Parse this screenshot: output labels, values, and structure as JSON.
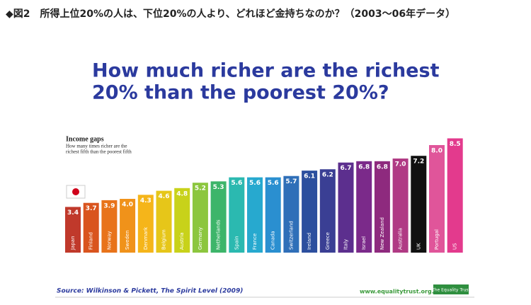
{
  "header": "◆図2　所得上位20%の人は、下位20%の人より、どれほど金持ちなのか？（2003～06年データ）",
  "chart_data": {
    "type": "bar",
    "title_lines": [
      "How much richer are the richest",
      "20% than the poorest 20%?"
    ],
    "annotations": [
      "Income gaps",
      "How many times richer are the",
      "richest fifth than the poorest fifth"
    ],
    "categories": [
      "Japan",
      "Finland",
      "Norway",
      "Sweden",
      "Denmark",
      "Belgium",
      "Austria",
      "Germany",
      "Netherlands",
      "Spain",
      "France",
      "Canada",
      "Switzerland",
      "Ireland",
      "Greece",
      "Italy",
      "Israel",
      "New Zealand",
      "Australia",
      "UK",
      "Portugal",
      "US"
    ],
    "values": [
      3.4,
      3.7,
      3.9,
      4.0,
      4.3,
      4.6,
      4.8,
      5.2,
      5.3,
      5.6,
      5.6,
      5.6,
      5.7,
      6.1,
      6.2,
      6.7,
      6.8,
      6.8,
      7.0,
      7.2,
      8.0,
      8.5
    ],
    "value_labels": [
      "3.4",
      "3.7",
      "3.9",
      "4.0",
      "4.3",
      "4.6",
      "4.8",
      "5.2",
      "5.3",
      "5.6",
      "5.6",
      "5.6",
      "5.7",
      "6.1",
      "6.2",
      "6.7",
      "6.8",
      "6.8",
      "7.0",
      "7.2",
      "8.0",
      "8.5"
    ],
    "colors": [
      "#c0392b",
      "#d9541e",
      "#e8731a",
      "#f0921a",
      "#f5b51a",
      "#e6c619",
      "#c8d21a",
      "#8cc63e",
      "#3db56a",
      "#2bb9b0",
      "#27a9cf",
      "#2a8fd0",
      "#2f6fb8",
      "#2c4f9e",
      "#3a3f94",
      "#5c2f8e",
      "#7b2a8a",
      "#8e2a7e",
      "#b03a84",
      "#111111",
      "#e0559a",
      "#e33a8d"
    ],
    "source": "Source: Wilkinson & Pickett, The Spirit Level (2009)",
    "website": "www.equalitytrust.org.uk",
    "logo": "The Equality Trust"
  }
}
